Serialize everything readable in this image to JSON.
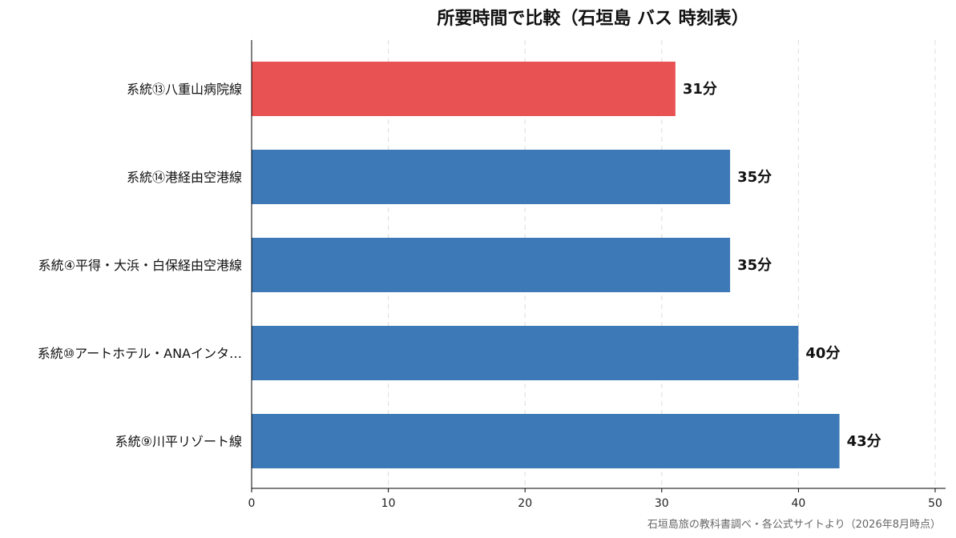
{
  "chart_data": {
    "type": "bar",
    "orientation": "horizontal",
    "title": "所要時間で比較（石垣島 バス 時刻表）",
    "categories": [
      "系統⑬八重山病院線",
      "系統⑭港経由空港線",
      "系統④平得・大浜・白保経由空港線",
      "系統⑩アートホテル・ANAインタ…",
      "系統⑨川平リゾート線"
    ],
    "values": [
      31,
      35,
      35,
      40,
      43
    ],
    "value_labels": [
      "31分",
      "35分",
      "35分",
      "40分",
      "43分"
    ],
    "highlight_index": 0,
    "xlim": [
      0,
      50
    ],
    "xticks": [
      0,
      10,
      20,
      30,
      40,
      50
    ],
    "xtick_labels": [
      "0",
      "10",
      "20",
      "30",
      "40",
      "50"
    ],
    "xlabel": "",
    "ylabel": "",
    "grid": "x-dashed",
    "colors": {
      "highlight": "#e85252",
      "default": "#3d79b6"
    },
    "source": "石垣島旅の教科書調べ・各公式サイトより（2026年8月時点）"
  }
}
